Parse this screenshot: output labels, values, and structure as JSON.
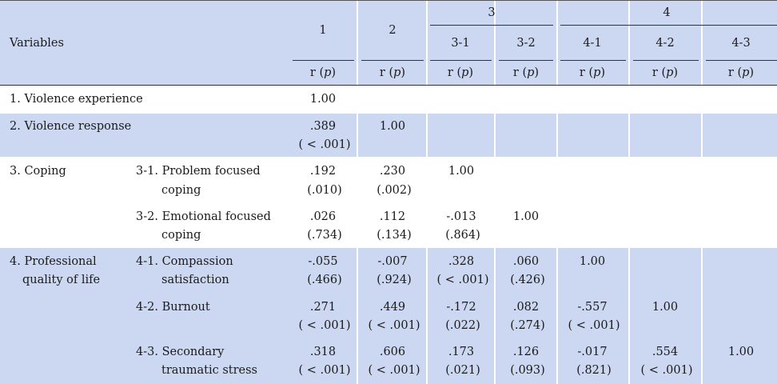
{
  "header": {
    "variables": "Variables",
    "col_1": "1",
    "col_2": "2",
    "group_3": "3",
    "col_3_1": "3-1",
    "col_3_2": "3-2",
    "group_4": "4",
    "col_4_1": "4-1",
    "col_4_2": "4-2",
    "col_4_3": "4-3",
    "stat": [
      "r (p)",
      "r (p)",
      "r (p)",
      "r (p)",
      "r (p)",
      "r (p)",
      "r (p)"
    ]
  },
  "rows": {
    "violence_experience": {
      "label": "1. Violence experience",
      "c1": "1.00"
    },
    "violence_response": {
      "label": "2. Violence response",
      "c1_r": ".389",
      "c1_p": "( < .001)",
      "c2": "1.00"
    },
    "coping": {
      "group_label": "3. Coping",
      "problem": {
        "label_1": "3-1. Problem focused",
        "label_2": "coping",
        "c1_r": ".192",
        "c1_p": "(.010)",
        "c2_r": ".230",
        "c2_p": "(.002)",
        "c3_1": "1.00"
      },
      "emotional": {
        "label_1": "3-2. Emotional focused",
        "label_2": "coping",
        "c1_r": ".026",
        "c1_p": "(.734)",
        "c2_r": ".112",
        "c2_p": "(.134)",
        "c3_1_r": "-.013",
        "c3_1_p": "(.864)",
        "c3_2": "1.00"
      }
    },
    "pql": {
      "group_label_1": "4. Professional",
      "group_label_2": "quality of life",
      "compassion": {
        "label_1": "4-1. Compassion",
        "label_2": "satisfaction",
        "c1_r": "-.055",
        "c1_p": "(.466)",
        "c2_r": "-.007",
        "c2_p": "(.924)",
        "c3_1_r": ".328",
        "c3_1_p": "( < .001)",
        "c3_2_r": ".060",
        "c3_2_p": "(.426)",
        "c4_1": "1.00"
      },
      "burnout": {
        "label": "4-2. Burnout",
        "c1_r": ".271",
        "c1_p": "( < .001)",
        "c2_r": ".449",
        "c2_p": "( < .001)",
        "c3_1_r": "-.172",
        "c3_1_p": "(.022)",
        "c3_2_r": ".082",
        "c3_2_p": "(.274)",
        "c4_1_r": "-.557",
        "c4_1_p": "( < .001)",
        "c4_2": "1.00"
      },
      "secondary": {
        "label_1": "4-3. Secondary",
        "label_2": "traumatic stress",
        "c1_r": ".318",
        "c1_p": "( < .001)",
        "c2_r": ".606",
        "c2_p": "( < .001)",
        "c3_1_r": ".173",
        "c3_1_p": "(.021)",
        "c3_2_r": ".126",
        "c3_2_p": "(.093)",
        "c4_1_r": "-.017",
        "c4_1_p": "(.821)",
        "c4_2_r": ".554",
        "c4_2_p": "( < .001)",
        "c4_3": "1.00"
      }
    }
  }
}
